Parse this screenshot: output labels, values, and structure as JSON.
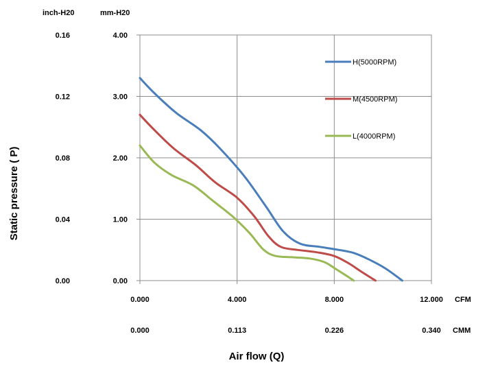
{
  "chart_data": {
    "type": "line",
    "title": "",
    "xlabel": "Air flow (Q)",
    "ylabel": "Static  pressure ( P)",
    "x_unit": "CFM",
    "x2_unit": "CMM",
    "y_unit": "mm-H20",
    "y2_unit": "inch-H20",
    "xlim": [
      0,
      12
    ],
    "ylim": [
      0,
      4
    ],
    "x_ticks": [
      "0.000",
      "4.000",
      "8.000",
      "12.000"
    ],
    "x2_ticks": [
      "0.000",
      "0.113",
      "0.226",
      "0.340"
    ],
    "y_ticks": [
      "0.00",
      "1.00",
      "2.00",
      "3.00",
      "4.00"
    ],
    "y2_ticks": [
      "0.00",
      "0.04",
      "0.08",
      "0.12",
      "0.16"
    ],
    "grid": true,
    "legend_position": "top-right",
    "series": [
      {
        "name": "H(5000RPM)",
        "color": "#4a7ebb",
        "x": [
          0,
          0.6,
          1.5,
          2.5,
          3.3,
          4.3,
          5.2,
          5.9,
          6.6,
          7.4,
          8.2,
          8.8,
          9.4,
          10.1,
          10.8
        ],
        "y": [
          3.3,
          3.05,
          2.73,
          2.45,
          2.15,
          1.7,
          1.2,
          0.8,
          0.6,
          0.55,
          0.5,
          0.45,
          0.35,
          0.2,
          0.0
        ]
      },
      {
        "name": "M(4500RPM)",
        "color": "#be4b48",
        "x": [
          0,
          0.6,
          1.4,
          2.3,
          3.1,
          4.0,
          4.7,
          5.3,
          5.8,
          6.5,
          7.3,
          8.0,
          8.6,
          9.1,
          9.7
        ],
        "y": [
          2.7,
          2.45,
          2.15,
          1.88,
          1.6,
          1.35,
          1.05,
          0.72,
          0.55,
          0.5,
          0.46,
          0.4,
          0.28,
          0.15,
          0.0
        ]
      },
      {
        "name": "L(4000RPM)",
        "color": "#98b954",
        "x": [
          0,
          0.6,
          1.3,
          2.2,
          3.0,
          3.8,
          4.5,
          5.1,
          5.6,
          6.3,
          7.0,
          7.6,
          8.1,
          8.5,
          8.8
        ],
        "y": [
          2.2,
          1.92,
          1.72,
          1.55,
          1.3,
          1.05,
          0.78,
          0.5,
          0.4,
          0.38,
          0.36,
          0.3,
          0.18,
          0.08,
          0.0
        ]
      }
    ]
  }
}
